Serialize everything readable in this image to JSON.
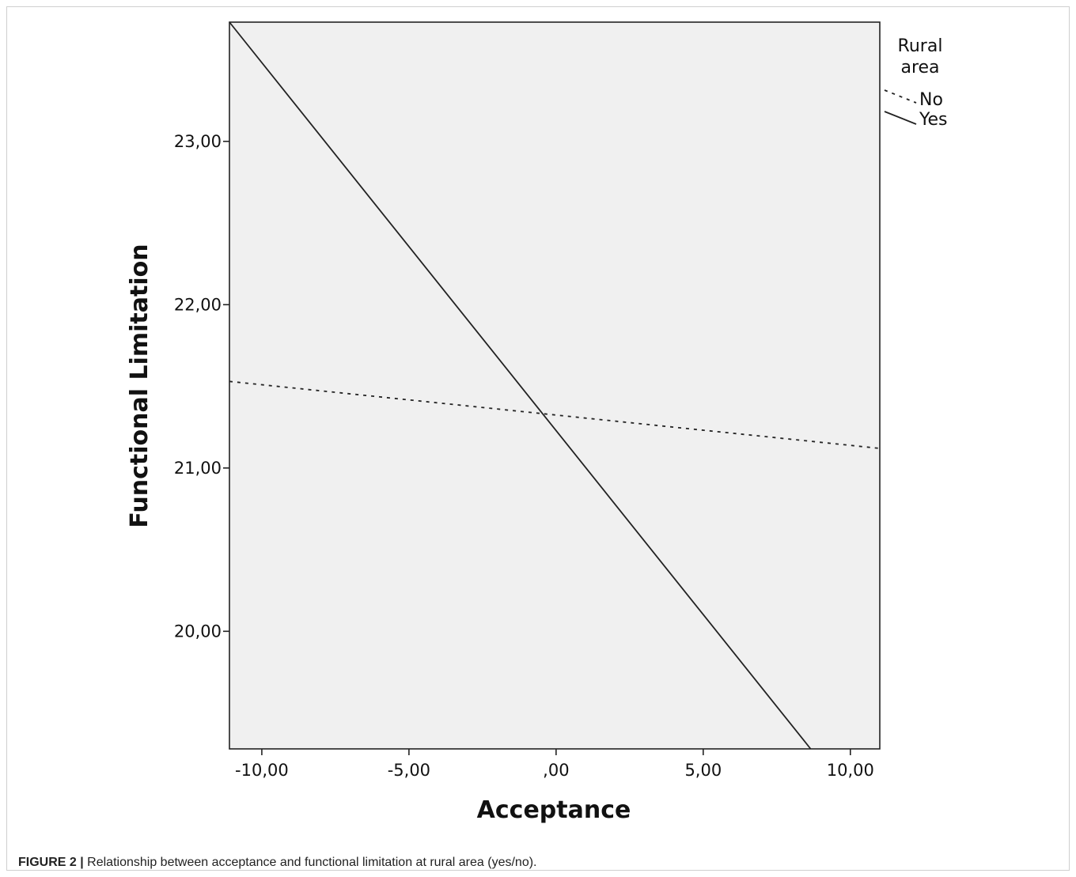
{
  "caption": {
    "label": "FIGURE 2 |",
    "text": " Relationship between acceptance and functional limitation at rural area (yes/no)."
  },
  "chart_data": {
    "type": "line",
    "title": "",
    "xlabel": "Acceptance",
    "ylabel": "Functional Limitation",
    "xlim": [
      -11.1,
      11.0
    ],
    "ylim": [
      19.28,
      23.73
    ],
    "x_ticks": [
      {
        "value": -10,
        "label": "-10,00"
      },
      {
        "value": -5,
        "label": "-5,00"
      },
      {
        "value": 0,
        "label": ",00"
      },
      {
        "value": 5,
        "label": "5,00"
      },
      {
        "value": 10,
        "label": "10,00"
      }
    ],
    "y_ticks": [
      {
        "value": 20,
        "label": "20,00"
      },
      {
        "value": 21,
        "label": "21,00"
      },
      {
        "value": 22,
        "label": "22,00"
      },
      {
        "value": 23,
        "label": "23,00"
      }
    ],
    "legend": {
      "title_lines": [
        "Rural",
        "area"
      ],
      "placement": "right-top"
    },
    "series": [
      {
        "name": "No",
        "style": "dashed",
        "x": [
          -11.1,
          11.0
        ],
        "y": [
          21.53,
          21.12
        ]
      },
      {
        "name": "Yes",
        "style": "solid",
        "x": [
          -11.1,
          8.65
        ],
        "y": [
          23.73,
          19.28
        ]
      }
    ],
    "background_color": "#f0f0f0",
    "line_color": "#222222",
    "grid": false
  }
}
